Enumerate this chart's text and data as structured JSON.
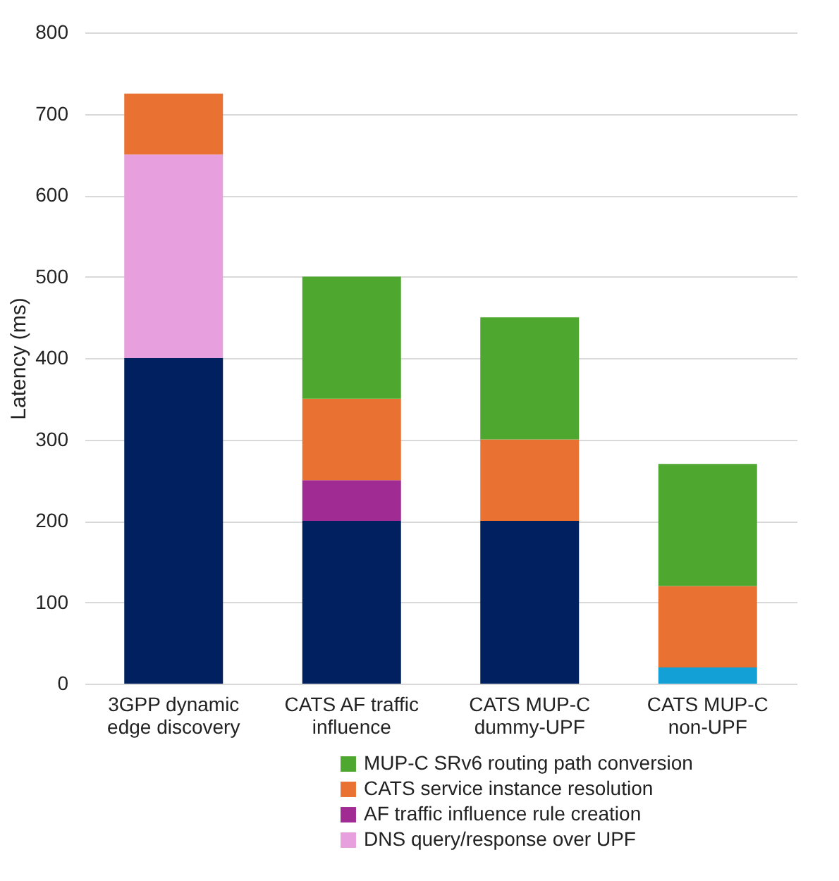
{
  "chart_data": {
    "type": "bar",
    "stacked": true,
    "ylabel": "Latency (ms)",
    "categories": [
      "3GPP dynamic edge discovery",
      "CATS AF traffic influence",
      "CATS MUP-C dummy-UPF",
      "CATS MUP-C non-UPF"
    ],
    "series": [
      {
        "color": "#002060",
        "values": [
          400,
          200,
          200,
          null
        ]
      },
      {
        "color": "#12a0d7",
        "values": [
          null,
          null,
          null,
          20
        ]
      },
      {
        "name": "DNS query/response over UPF",
        "color": "#e79fdd",
        "values": [
          250,
          null,
          null,
          null
        ]
      },
      {
        "name": "AF traffic influence rule creation",
        "color": "#a02b93",
        "values": [
          null,
          50,
          null,
          null
        ]
      },
      {
        "name": "CATS service instance resolution",
        "color": "#e97132",
        "values": [
          75,
          100,
          100,
          100
        ]
      },
      {
        "name": "MUP-C SRv6 routing path conversion",
        "color": "#4ea72e",
        "values": [
          null,
          150,
          150,
          150
        ]
      }
    ],
    "ylim": [
      0,
      800
    ],
    "yticks": [
      0,
      100,
      200,
      300,
      400,
      500,
      600,
      700,
      800
    ],
    "grid": "y",
    "legend": "bottom"
  }
}
